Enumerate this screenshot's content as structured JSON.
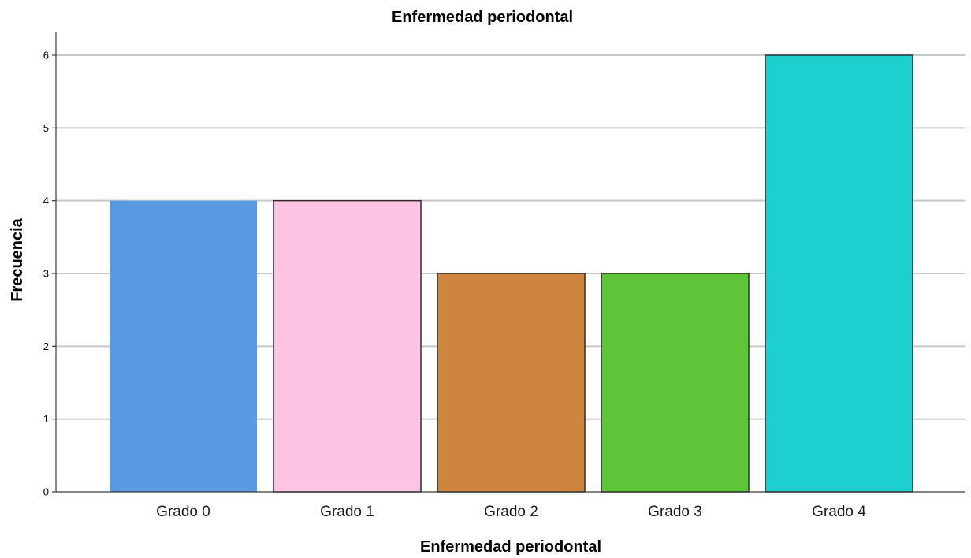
{
  "chart_data": {
    "type": "bar",
    "title": "Enfermedad periodontal",
    "xlabel": "Enfermedad periodontal",
    "ylabel": "Frecuencia",
    "categories": [
      "Grado 0",
      "Grado 1",
      "Grado 2",
      "Grado 3",
      "Grado 4"
    ],
    "values": [
      4,
      4,
      3,
      3,
      6
    ],
    "colors": [
      "#5899e2",
      "#fec3e2",
      "#cd8540",
      "#5ec438",
      "#1ecfcf"
    ],
    "bordered": [
      false,
      true,
      true,
      true,
      true
    ],
    "ylim": [
      0,
      6
    ],
    "yticks": [
      "0",
      "1",
      "2",
      "3",
      "4",
      "5",
      "6"
    ],
    "grid": true,
    "legend": "none"
  }
}
